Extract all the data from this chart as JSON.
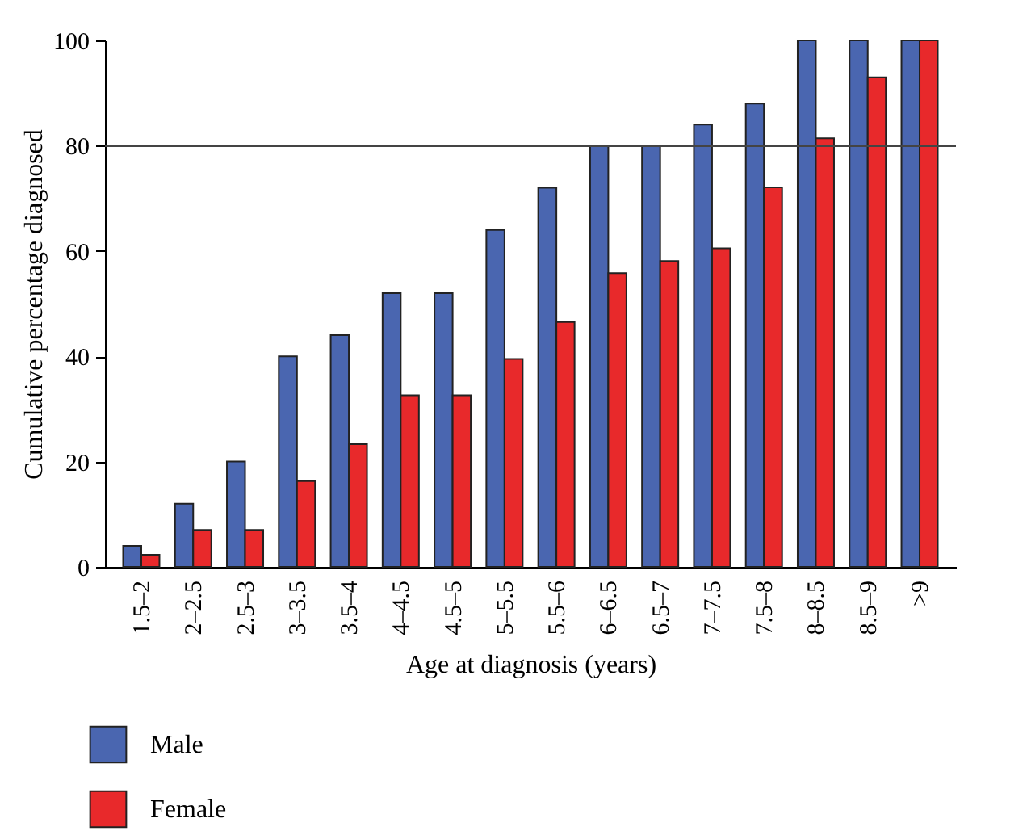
{
  "chart_data": {
    "type": "bar",
    "xlabel": "Age at diagnosis (years)",
    "ylabel": "Cumulative percentage diagnosed",
    "categories": [
      "1.5–2",
      "2–2.5",
      "2.5–3",
      "3–3.5",
      "3.5–4",
      "4–4.5",
      "4.5–5",
      "5–5.5",
      "5.5–6",
      "6–6.5",
      "6.5–7",
      "7–7.5",
      "7.5–8",
      "8–8.5",
      "8.5–9",
      ">9"
    ],
    "series": [
      {
        "name": "Male",
        "color": "#4a66b0",
        "values": [
          4,
          12,
          20,
          40,
          44,
          52,
          52,
          64,
          72,
          80,
          80,
          84,
          88,
          100,
          100,
          100
        ]
      },
      {
        "name": "Female",
        "color": "#e8292b",
        "values": [
          2.3,
          7,
          7,
          16.3,
          23.3,
          32.6,
          32.6,
          39.5,
          46.5,
          55.8,
          58.1,
          60.5,
          72.1,
          81.4,
          93,
          100
        ]
      }
    ],
    "ylim": [
      0,
      100
    ],
    "yticks": [
      0,
      20,
      40,
      60,
      80,
      100
    ],
    "ref_lines": [
      {
        "axis": "y",
        "value": 80,
        "label": null
      }
    ],
    "legend": "bottom",
    "grid": false
  }
}
